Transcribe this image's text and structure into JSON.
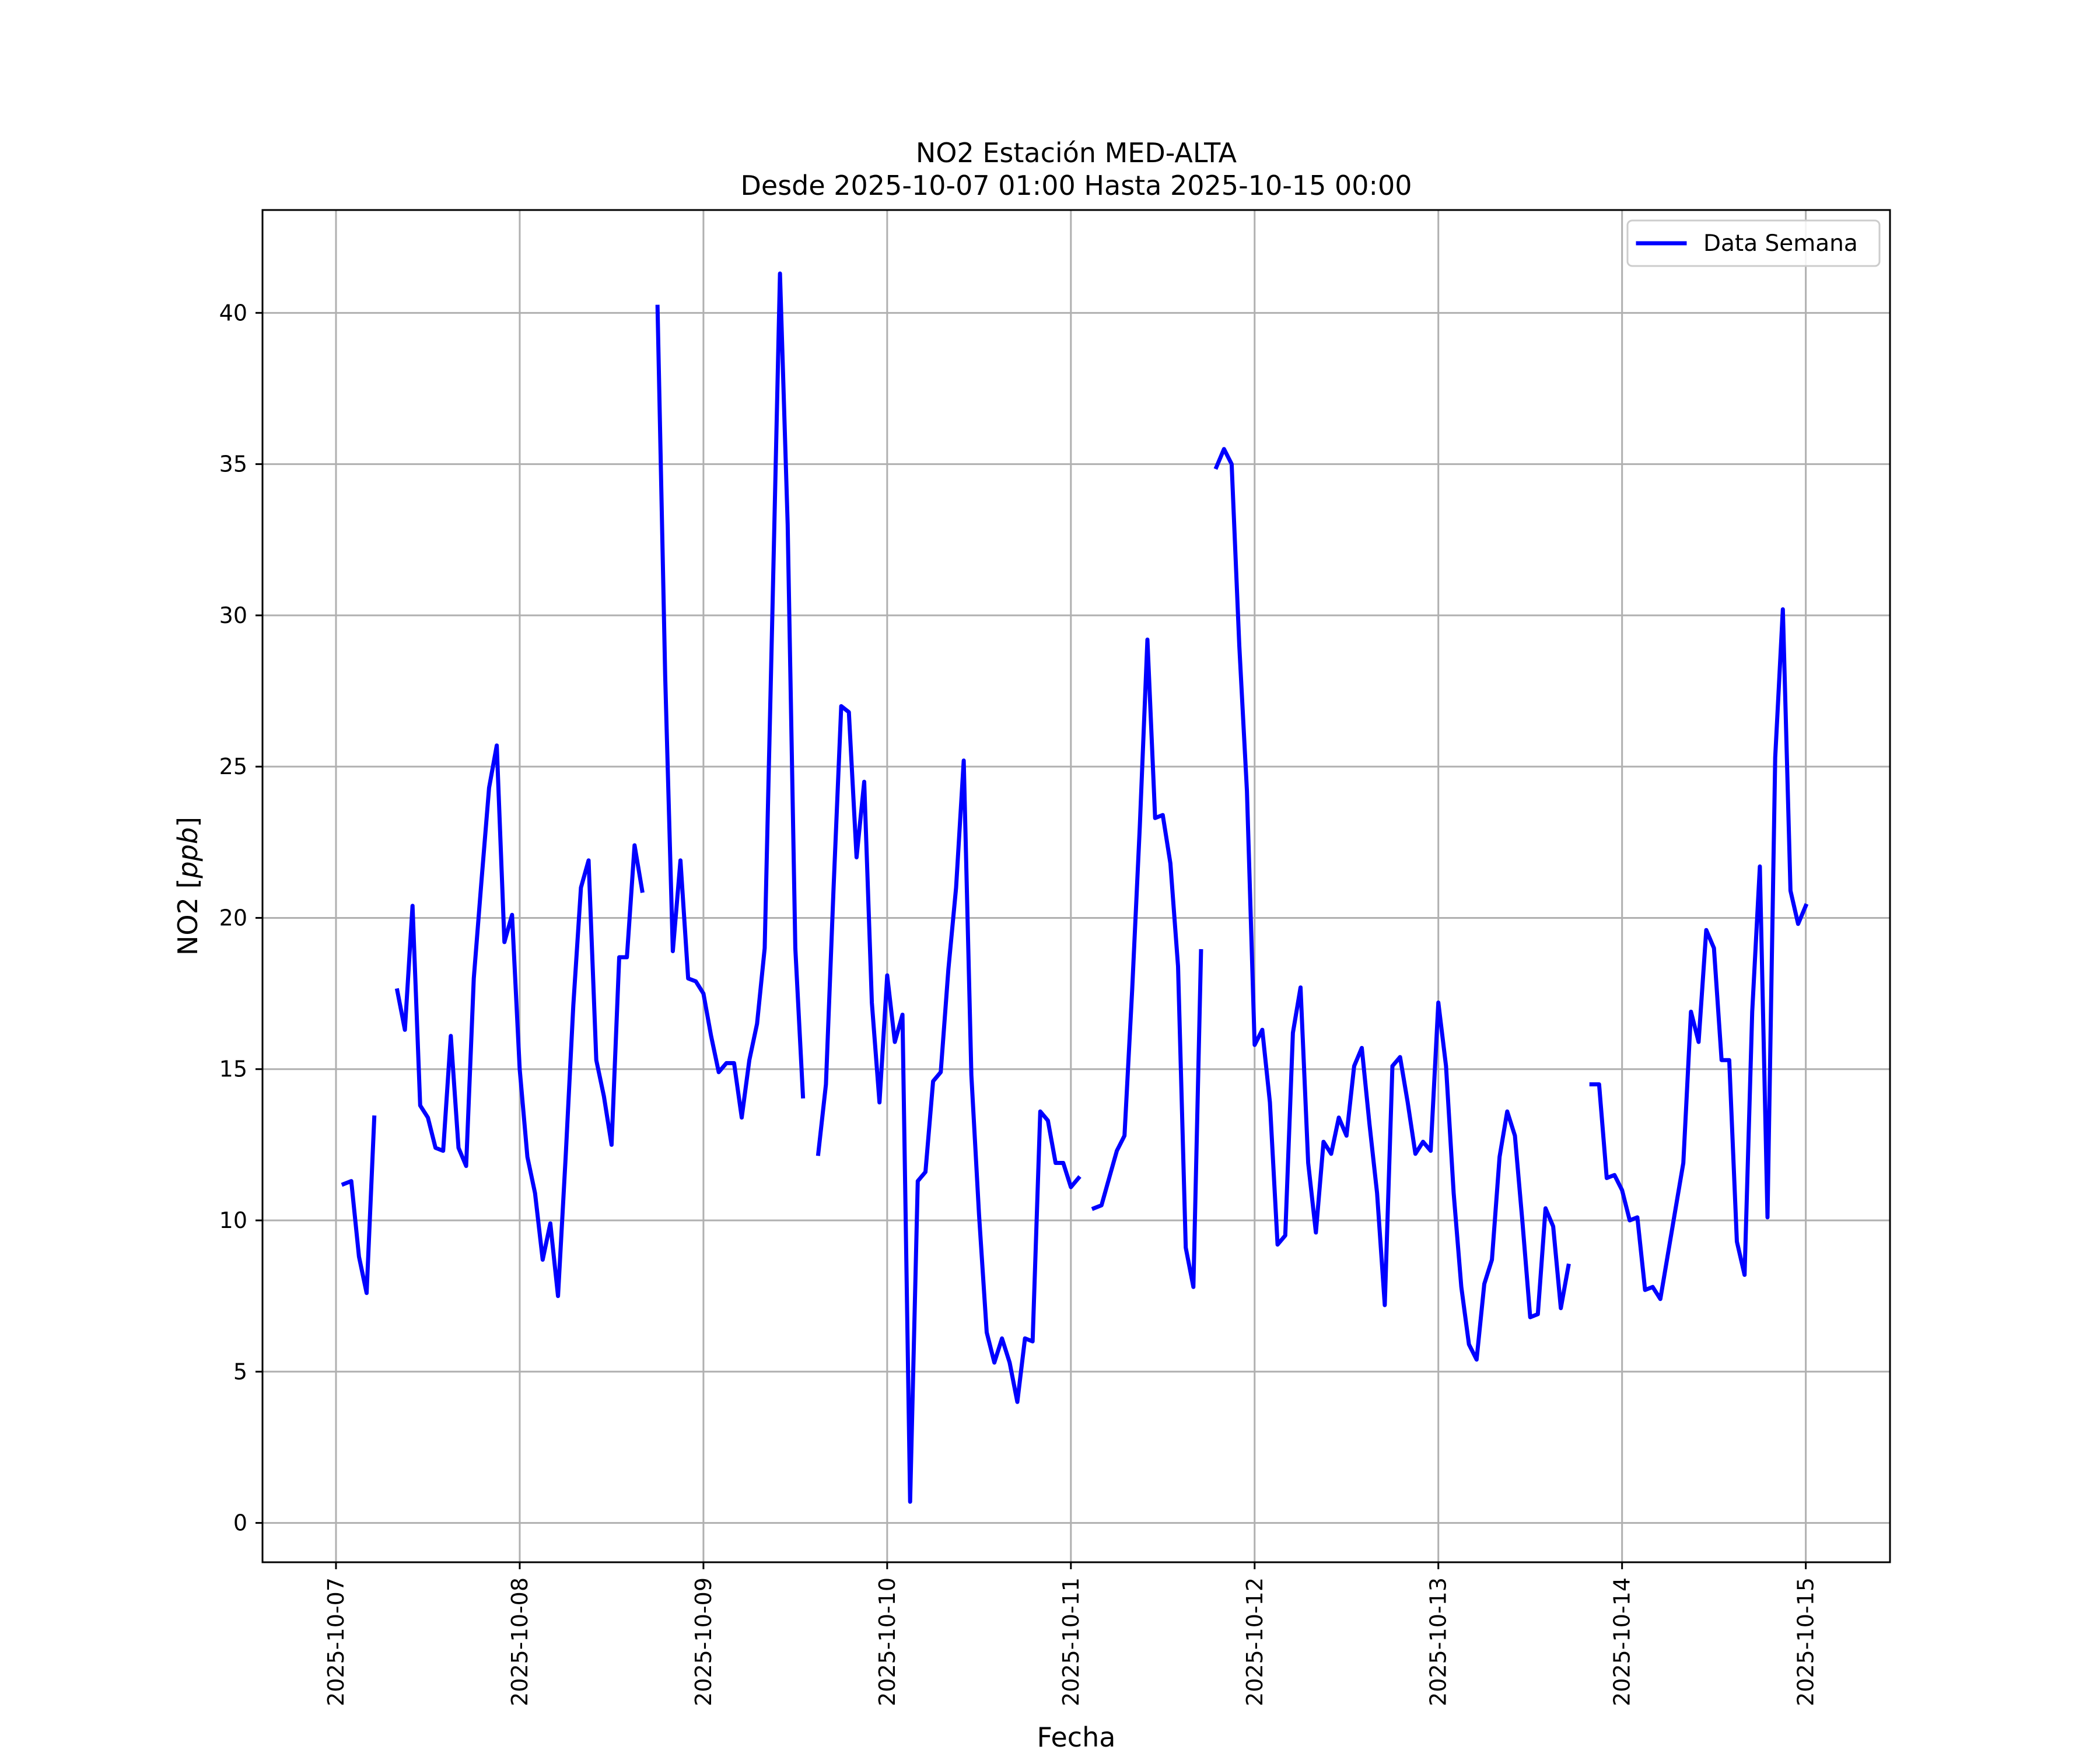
{
  "chart_data": {
    "type": "line",
    "title": "NO2 Estación MED-ALTA",
    "subtitle": "Desde 2025-10-07 01:00 Hasta 2025-10-15 00:00",
    "xlabel": "Fecha",
    "ylabel": "NO2 [ppb]",
    "xlim": [
      "2025-10-06 14:24",
      "2025-10-15 11:00"
    ],
    "ylim": [
      -1.3,
      43.4
    ],
    "x_ticks": [
      "2025-10-07",
      "2025-10-08",
      "2025-10-09",
      "2025-10-10",
      "2025-10-11",
      "2025-10-12",
      "2025-10-13",
      "2025-10-14",
      "2025-10-15"
    ],
    "y_ticks": [
      0,
      5,
      10,
      15,
      20,
      25,
      30,
      35,
      40
    ],
    "grid": true,
    "legend_position": "top-right",
    "series": [
      {
        "name": "Data Semana",
        "color": "#0000ff",
        "x": [
          "2025-10-07 01:00",
          "2025-10-07 02:00",
          "2025-10-07 03:00",
          "2025-10-07 04:00",
          "2025-10-07 05:00",
          "2025-10-07 06:00",
          "2025-10-07 07:00",
          "2025-10-07 08:00",
          "2025-10-07 09:00",
          "2025-10-07 10:00",
          "2025-10-07 11:00",
          "2025-10-07 12:00",
          "2025-10-07 13:00",
          "2025-10-07 14:00",
          "2025-10-07 15:00",
          "2025-10-07 16:00",
          "2025-10-07 17:00",
          "2025-10-07 18:00",
          "2025-10-07 19:00",
          "2025-10-07 20:00",
          "2025-10-07 21:00",
          "2025-10-07 22:00",
          "2025-10-07 23:00",
          "2025-10-08 00:00",
          "2025-10-08 01:00",
          "2025-10-08 02:00",
          "2025-10-08 03:00",
          "2025-10-08 04:00",
          "2025-10-08 05:00",
          "2025-10-08 06:00",
          "2025-10-08 07:00",
          "2025-10-08 08:00",
          "2025-10-08 09:00",
          "2025-10-08 10:00",
          "2025-10-08 11:00",
          "2025-10-08 12:00",
          "2025-10-08 13:00",
          "2025-10-08 14:00",
          "2025-10-08 15:00",
          "2025-10-08 16:00",
          "2025-10-08 17:00",
          "2025-10-08 18:00",
          "2025-10-08 19:00",
          "2025-10-08 20:00",
          "2025-10-08 21:00",
          "2025-10-08 22:00",
          "2025-10-08 23:00",
          "2025-10-09 00:00",
          "2025-10-09 01:00",
          "2025-10-09 02:00",
          "2025-10-09 03:00",
          "2025-10-09 04:00",
          "2025-10-09 05:00",
          "2025-10-09 06:00",
          "2025-10-09 07:00",
          "2025-10-09 08:00",
          "2025-10-09 09:00",
          "2025-10-09 10:00",
          "2025-10-09 11:00",
          "2025-10-09 12:00",
          "2025-10-09 13:00",
          "2025-10-09 14:00",
          "2025-10-09 15:00",
          "2025-10-09 16:00",
          "2025-10-09 17:00",
          "2025-10-09 18:00",
          "2025-10-09 19:00",
          "2025-10-09 20:00",
          "2025-10-09 21:00",
          "2025-10-09 22:00",
          "2025-10-09 23:00",
          "2025-10-10 00:00",
          "2025-10-10 01:00",
          "2025-10-10 02:00",
          "2025-10-10 03:00",
          "2025-10-10 04:00",
          "2025-10-10 05:00",
          "2025-10-10 06:00",
          "2025-10-10 07:00",
          "2025-10-10 08:00",
          "2025-10-10 09:00",
          "2025-10-10 10:00",
          "2025-10-10 11:00",
          "2025-10-10 12:00",
          "2025-10-10 13:00",
          "2025-10-10 14:00",
          "2025-10-10 15:00",
          "2025-10-10 16:00",
          "2025-10-10 17:00",
          "2025-10-10 18:00",
          "2025-10-10 19:00",
          "2025-10-10 20:00",
          "2025-10-10 21:00",
          "2025-10-10 22:00",
          "2025-10-10 23:00",
          "2025-10-11 00:00",
          "2025-10-11 01:00",
          "2025-10-11 02:00",
          "2025-10-11 03:00",
          "2025-10-11 04:00",
          "2025-10-11 05:00",
          "2025-10-11 06:00",
          "2025-10-11 07:00",
          "2025-10-11 08:00",
          "2025-10-11 09:00",
          "2025-10-11 10:00",
          "2025-10-11 11:00",
          "2025-10-11 12:00",
          "2025-10-11 13:00",
          "2025-10-11 14:00",
          "2025-10-11 15:00",
          "2025-10-11 16:00",
          "2025-10-11 17:00",
          "2025-10-11 18:00",
          "2025-10-11 19:00",
          "2025-10-11 20:00",
          "2025-10-11 21:00",
          "2025-10-11 22:00",
          "2025-10-11 23:00",
          "2025-10-12 00:00",
          "2025-10-12 01:00",
          "2025-10-12 02:00",
          "2025-10-12 03:00",
          "2025-10-12 04:00",
          "2025-10-12 05:00",
          "2025-10-12 06:00",
          "2025-10-12 07:00",
          "2025-10-12 08:00",
          "2025-10-12 09:00",
          "2025-10-12 10:00",
          "2025-10-12 11:00",
          "2025-10-12 12:00",
          "2025-10-12 13:00",
          "2025-10-12 14:00",
          "2025-10-12 15:00",
          "2025-10-12 16:00",
          "2025-10-12 17:00",
          "2025-10-12 18:00",
          "2025-10-12 19:00",
          "2025-10-12 20:00",
          "2025-10-12 21:00",
          "2025-10-12 22:00",
          "2025-10-12 23:00",
          "2025-10-13 00:00",
          "2025-10-13 01:00",
          "2025-10-13 02:00",
          "2025-10-13 03:00",
          "2025-10-13 04:00",
          "2025-10-13 05:00",
          "2025-10-13 06:00",
          "2025-10-13 07:00",
          "2025-10-13 08:00",
          "2025-10-13 09:00",
          "2025-10-13 10:00",
          "2025-10-13 11:00",
          "2025-10-13 12:00",
          "2025-10-13 13:00",
          "2025-10-13 14:00",
          "2025-10-13 15:00",
          "2025-10-13 16:00",
          "2025-10-13 17:00",
          "2025-10-13 18:00",
          "2025-10-13 19:00",
          "2025-10-13 20:00",
          "2025-10-13 21:00",
          "2025-10-13 22:00",
          "2025-10-13 23:00",
          "2025-10-14 00:00",
          "2025-10-14 01:00",
          "2025-10-14 02:00",
          "2025-10-14 03:00",
          "2025-10-14 04:00",
          "2025-10-14 05:00",
          "2025-10-14 06:00",
          "2025-10-14 07:00",
          "2025-10-14 08:00",
          "2025-10-14 09:00",
          "2025-10-14 10:00",
          "2025-10-14 11:00",
          "2025-10-14 12:00",
          "2025-10-14 13:00",
          "2025-10-14 14:00",
          "2025-10-14 15:00",
          "2025-10-14 16:00",
          "2025-10-14 17:00",
          "2025-10-14 18:00",
          "2025-10-14 19:00",
          "2025-10-14 20:00",
          "2025-10-14 21:00",
          "2025-10-14 22:00",
          "2025-10-14 23:00",
          "2025-10-15 00:00"
        ],
        "y": [
          11.2,
          11.3,
          8.8,
          7.6,
          13.4,
          null,
          null,
          17.6,
          16.3,
          20.4,
          13.8,
          13.4,
          12.4,
          12.3,
          16.1,
          12.4,
          11.8,
          18.0,
          21.2,
          24.3,
          25.7,
          19.2,
          20.1,
          15.0,
          12.1,
          10.9,
          8.7,
          9.9,
          7.5,
          12.1,
          17.1,
          21.0,
          21.9,
          15.3,
          14.1,
          12.5,
          18.7,
          18.7,
          22.4,
          20.9,
          null,
          40.2,
          28.0,
          18.9,
          21.9,
          18.0,
          17.9,
          17.5,
          16.1,
          14.9,
          15.2,
          15.2,
          13.4,
          15.3,
          16.5,
          19.0,
          30.0,
          41.3,
          33.0,
          19.0,
          14.1,
          null,
          12.2,
          14.5,
          21.0,
          27.0,
          26.8,
          22.0,
          24.5,
          17.2,
          13.9,
          18.1,
          15.9,
          16.8,
          0.7,
          11.3,
          11.6,
          14.6,
          14.9,
          18.3,
          21.0,
          25.2,
          14.8,
          10.2,
          6.3,
          5.3,
          6.1,
          5.3,
          4.0,
          6.1,
          6.0,
          13.6,
          13.3,
          11.9,
          11.9,
          11.1,
          11.4,
          null,
          10.4,
          10.5,
          11.4,
          12.3,
          12.8,
          17.6,
          23.0,
          29.2,
          23.3,
          23.4,
          21.8,
          18.4,
          9.1,
          7.8,
          18.9,
          null,
          34.9,
          35.5,
          35.0,
          29.0,
          24.2,
          15.8,
          16.3,
          13.9,
          9.2,
          9.5,
          16.2,
          17.7,
          11.9,
          9.6,
          12.6,
          12.2,
          13.4,
          12.8,
          15.1,
          15.7,
          13.2,
          10.9,
          7.2,
          15.1,
          15.4,
          13.9,
          12.2,
          12.6,
          12.3,
          17.2,
          15.1,
          10.9,
          7.8,
          5.9,
          5.4,
          7.9,
          8.7,
          12.1,
          13.6,
          12.8,
          9.9,
          6.8,
          6.9,
          10.4,
          9.8,
          7.1,
          8.5,
          null,
          null,
          14.5,
          14.5,
          11.4,
          11.5,
          11.0,
          10.0,
          10.1,
          7.7,
          7.8,
          7.4,
          8.9,
          10.4,
          11.9,
          16.9,
          15.9,
          19.6,
          19.0,
          15.3,
          15.3,
          9.3,
          8.2,
          16.9,
          21.7,
          10.1,
          25.3,
          30.2,
          20.9,
          19.8,
          20.4
        ]
      }
    ]
  }
}
